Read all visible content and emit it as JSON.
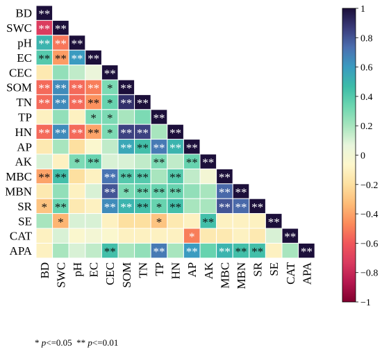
{
  "chart_data": {
    "type": "heatmap",
    "variables": [
      "BD",
      "SWC",
      "pH",
      "EC",
      "CEC",
      "SOM",
      "TN",
      "TP",
      "HN",
      "AP",
      "AK",
      "MBC",
      "MBN",
      "SR",
      "SE",
      "CAT",
      "APA"
    ],
    "matrix_lower": [
      [
        1
      ],
      [
        -0.72,
        1
      ],
      [
        0.5,
        -0.52,
        1
      ],
      [
        0.4,
        -0.42,
        0.6,
        1
      ],
      [
        -0.15,
        0.25,
        0.15,
        0.05,
        1
      ],
      [
        -0.55,
        0.65,
        -0.55,
        -0.5,
        0.3,
        1
      ],
      [
        -0.55,
        0.65,
        -0.55,
        -0.45,
        0.35,
        0.9,
        1
      ],
      [
        -0.1,
        0.25,
        -0.1,
        0.3,
        0.3,
        0.2,
        0.3,
        1
      ],
      [
        -0.55,
        0.65,
        -0.55,
        -0.4,
        0.3,
        0.85,
        0.85,
        0.2,
        1
      ],
      [
        -0.15,
        0.2,
        -0.2,
        -0.05,
        0.15,
        0.55,
        0.45,
        0.7,
        0.5,
        1
      ],
      [
        0.1,
        -0.1,
        0.3,
        0.35,
        0.1,
        0.1,
        0.15,
        0.3,
        0.15,
        0.35,
        1
      ],
      [
        -0.4,
        0.45,
        -0.2,
        -0.1,
        0.72,
        0.4,
        0.4,
        0.2,
        0.4,
        0.15,
        0.0,
        1
      ],
      [
        -0.15,
        0.25,
        -0.1,
        0.1,
        0.8,
        0.3,
        0.35,
        0.35,
        0.35,
        0.25,
        0.2,
        0.75,
        1
      ],
      [
        -0.3,
        0.35,
        -0.15,
        -0.1,
        0.65,
        0.5,
        0.45,
        0.35,
        0.45,
        0.2,
        0.2,
        0.8,
        0.75,
        1
      ],
      [
        0.2,
        -0.35,
        0.1,
        0.1,
        -0.1,
        -0.2,
        -0.2,
        -0.3,
        -0.15,
        -0.1,
        0.45,
        -0.1,
        -0.1,
        -0.1,
        1
      ],
      [
        -0.1,
        0.1,
        -0.05,
        0.0,
        -0.05,
        -0.1,
        -0.1,
        -0.1,
        -0.1,
        -0.5,
        -0.15,
        -0.15,
        -0.1,
        -0.15,
        0.1,
        1
      ],
      [
        -0.1,
        0.2,
        0.1,
        0.15,
        0.45,
        0.2,
        0.25,
        0.7,
        0.2,
        0.6,
        0.35,
        0.5,
        0.45,
        0.45,
        -0.1,
        0.2,
        1
      ]
    ],
    "significance_lower": [
      [
        "**"
      ],
      [
        "**",
        "**"
      ],
      [
        "**",
        "**",
        "**"
      ],
      [
        "**",
        "**",
        "**",
        "**"
      ],
      [
        "",
        "",
        "",
        "",
        "**"
      ],
      [
        "**",
        "**",
        "**",
        "**",
        "*",
        "**"
      ],
      [
        "**",
        "**",
        "**",
        "**",
        "*",
        "**",
        "**"
      ],
      [
        "",
        "",
        "",
        "*",
        "*",
        "",
        "",
        "**"
      ],
      [
        "**",
        "**",
        "**",
        "**",
        "*",
        "**",
        "**",
        "",
        "**"
      ],
      [
        "",
        "",
        "",
        "",
        "",
        "**",
        "**",
        "**",
        "**",
        "**"
      ],
      [
        "",
        "",
        "*",
        "**",
        "",
        "",
        "",
        "**",
        "",
        "**",
        "**"
      ],
      [
        "**",
        "**",
        "",
        "",
        "**",
        "**",
        "**",
        "",
        "**",
        "",
        "",
        "**"
      ],
      [
        "",
        "",
        "",
        "",
        "**",
        "*",
        "**",
        "**",
        "**",
        "",
        "",
        "**",
        "**"
      ],
      [
        "*",
        "**",
        "",
        "",
        "**",
        "**",
        "**",
        "*",
        "**",
        "",
        "",
        "**",
        "**",
        "**"
      ],
      [
        "",
        "*",
        "",
        "",
        "",
        "",
        "",
        "*",
        "",
        "",
        "**",
        "",
        "",
        "",
        "**"
      ],
      [
        "",
        "",
        "",
        "",
        "",
        "",
        "",
        "",
        "",
        "*",
        "",
        "",
        "",
        "",
        "",
        "**"
      ],
      [
        "",
        "",
        "",
        "",
        "**",
        "",
        "",
        "**",
        "",
        "**",
        "",
        "**",
        "**",
        "**",
        "",
        "",
        "**"
      ]
    ],
    "colorbar": {
      "min": -1,
      "max": 1,
      "ticks": [
        "1",
        "0.8",
        "0.6",
        "0.4",
        "0.2",
        "0",
        "−0.2",
        "−0.4",
        "−0.6",
        "−0.8",
        "−1"
      ]
    },
    "colors": [
      "#1c0f3a",
      "#3a3b7a",
      "#4b6fb0",
      "#3a9bc0",
      "#3dbca8",
      "#6dd6b0",
      "#a8e5be",
      "#e8f5dc",
      "#fdf7cc",
      "#fde0a0",
      "#fdbb77",
      "#fb8b5a",
      "#f0565a",
      "#d93a5f",
      "#b5174f",
      "#80002e"
    ],
    "legend_note": {
      "single": "* ",
      "single_p": "p",
      "single_rest": "<=0.05",
      "double": "** ",
      "double_p": "p",
      "double_rest": "<=0.01"
    }
  }
}
